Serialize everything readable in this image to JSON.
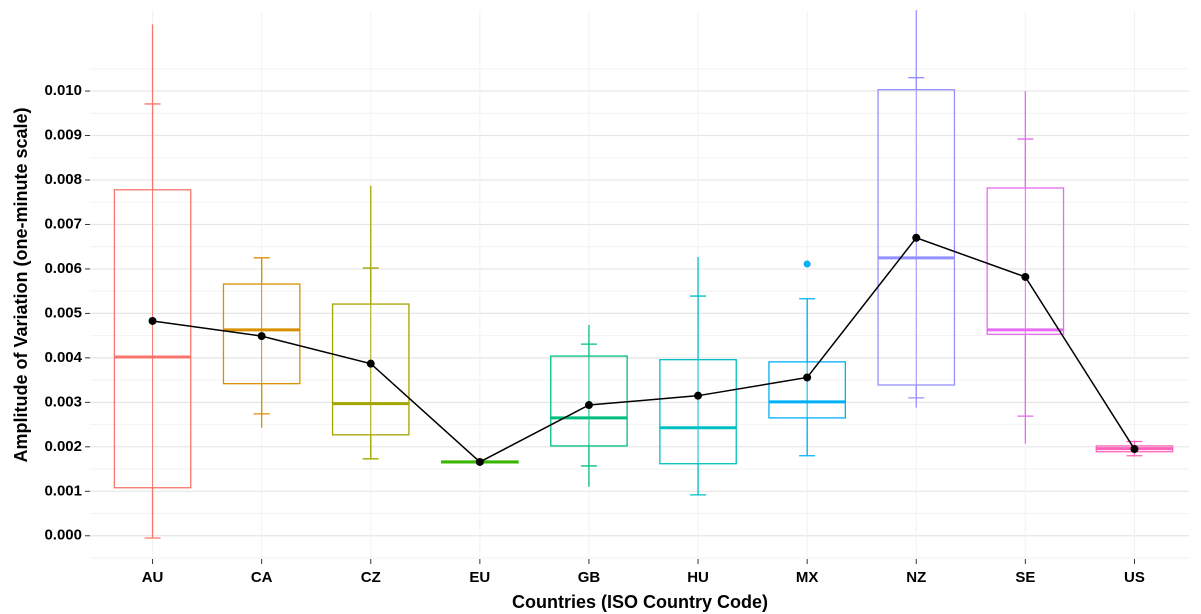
{
  "chart_data": {
    "type": "box",
    "x_label": "Countries (ISO Country Code)",
    "y_label": "Amplitude of Variation (one-minute scale)",
    "categories": [
      "AU",
      "CA",
      "CZ",
      "EU",
      "GB",
      "HU",
      "MX",
      "NZ",
      "SE",
      "US"
    ],
    "ylim": [
      -0.0005,
      0.0118
    ],
    "yticks": [
      {
        "value": 0,
        "label": "0.000"
      },
      {
        "value": 0.001,
        "label": "0.001"
      },
      {
        "value": 0.002,
        "label": "0.002"
      },
      {
        "value": 0.003,
        "label": "0.003"
      },
      {
        "value": 0.004,
        "label": "0.004"
      },
      {
        "value": 0.005,
        "label": "0.005"
      },
      {
        "value": 0.006,
        "label": "0.006"
      },
      {
        "value": 0.007,
        "label": "0.007"
      },
      {
        "value": 0.008,
        "label": "0.008"
      },
      {
        "value": 0.009,
        "label": "0.009"
      },
      {
        "value": 0.01,
        "label": "0.010"
      }
    ],
    "grid": true,
    "mean_color": "#000000",
    "boxes": [
      {
        "color": "#F8766D",
        "whisker_low": -5e-05,
        "q1": 0.00108,
        "median": 0.00402,
        "q3": 0.00778,
        "whisker_high": 0.0115,
        "mean": 0.00483,
        "err_low": -5e-05,
        "err_high": 0.00971,
        "outliers": []
      },
      {
        "color": "#D89000",
        "whisker_low": 0.00243,
        "q1": 0.00342,
        "median": 0.00463,
        "q3": 0.00566,
        "whisker_high": 0.00625,
        "mean": 0.00449,
        "err_low": 0.00274,
        "err_high": 0.00625,
        "outliers": []
      },
      {
        "color": "#A3A500",
        "whisker_low": 0.00173,
        "q1": 0.00227,
        "median": 0.00297,
        "q3": 0.00521,
        "whisker_high": 0.00787,
        "mean": 0.00387,
        "err_low": 0.00173,
        "err_high": 0.00602,
        "outliers": []
      },
      {
        "color": "#39B600",
        "whisker_low": 0.00163,
        "q1": 0.00164,
        "median": 0.00166,
        "q3": 0.00168,
        "whisker_high": 0.00169,
        "mean": 0.00166,
        "err_low": 0.00164,
        "err_high": 0.00168,
        "outliers": []
      },
      {
        "color": "#00BF7D",
        "whisker_low": 0.0011,
        "q1": 0.00202,
        "median": 0.00265,
        "q3": 0.00404,
        "whisker_high": 0.00474,
        "mean": 0.00294,
        "err_low": 0.00157,
        "err_high": 0.00431,
        "outliers": []
      },
      {
        "color": "#00BFC4",
        "whisker_low": 0.00092,
        "q1": 0.00162,
        "median": 0.00243,
        "q3": 0.00396,
        "whisker_high": 0.00627,
        "mean": 0.00315,
        "err_low": 0.00092,
        "err_high": 0.00539,
        "outliers": []
      },
      {
        "color": "#00B0F6",
        "whisker_low": 0.0018,
        "q1": 0.00265,
        "median": 0.00301,
        "q3": 0.00391,
        "whisker_high": 0.00533,
        "mean": 0.00356,
        "err_low": 0.0018,
        "err_high": 0.00533,
        "outliers": [
          0.00611
        ]
      },
      {
        "color": "#9590FF",
        "whisker_low": 0.00288,
        "q1": 0.00339,
        "median": 0.00625,
        "q3": 0.01003,
        "whisker_high": 0.01182,
        "mean": 0.0067,
        "err_low": 0.0031,
        "err_high": 0.0103,
        "outliers": []
      },
      {
        "color": "#E76BF3",
        "whisker_low": 0.00207,
        "q1": 0.00453,
        "median": 0.00463,
        "q3": 0.00782,
        "whisker_high": 0.01,
        "mean": 0.00582,
        "err_low": 0.00269,
        "err_high": 0.00892,
        "outliers": []
      },
      {
        "color": "#FF62BC",
        "whisker_low": 0.00178,
        "q1": 0.00189,
        "median": 0.00196,
        "q3": 0.00202,
        "whisker_high": 0.00214,
        "mean": 0.00195,
        "err_low": 0.0018,
        "err_high": 0.00212,
        "outliers": []
      }
    ]
  }
}
